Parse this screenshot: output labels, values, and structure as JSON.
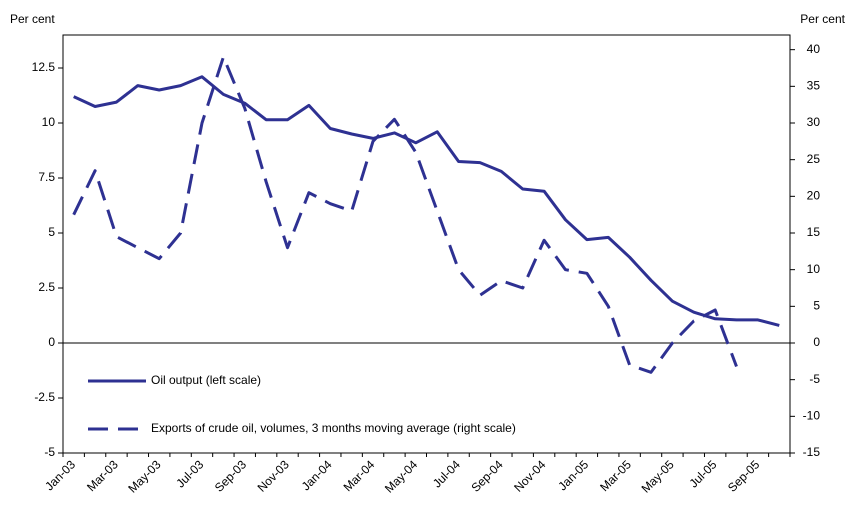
{
  "chart_data": {
    "type": "line",
    "y_label": "Per cent",
    "y2_label": "Per cent",
    "categories": [
      "Jan-03",
      null,
      "Mar-03",
      null,
      "May-03",
      null,
      "Jul-03",
      null,
      "Sep-03",
      null,
      "Nov-03",
      null,
      "Jan-04",
      null,
      "Mar-04",
      null,
      "May-04",
      null,
      "Jul-04",
      null,
      "Sep-04",
      null,
      "Nov-04",
      null,
      "Jan-05",
      null,
      "Mar-05",
      null,
      "May-05",
      null,
      "Jul-05",
      null,
      "Sep-05",
      null
    ],
    "series": [
      {
        "name": "Oil output (left scale)",
        "color": "#2e3192",
        "dash": false,
        "axis": "y",
        "values": [
          11.2,
          10.75,
          10.95,
          11.7,
          11.5,
          11.7,
          12.1,
          11.3,
          10.9,
          10.15,
          10.15,
          10.8,
          9.75,
          9.5,
          9.3,
          9.55,
          9.1,
          9.6,
          8.25,
          8.2,
          7.8,
          7.0,
          6.9,
          5.6,
          4.7,
          4.8,
          3.9,
          2.85,
          1.9,
          1.4,
          1.1,
          1.05,
          1.05,
          0.8
        ]
      },
      {
        "name": "Exports of crude oil, volumes, 3 months moving average (right scale)",
        "color": "#2e3192",
        "dash": true,
        "axis": "y2",
        "values": [
          17.5,
          23.5,
          14.5,
          13,
          11.5,
          15,
          30,
          39,
          32,
          22,
          13,
          20.5,
          19,
          18,
          27.5,
          30.5,
          26,
          18,
          10,
          6.5,
          8.5,
          7.5,
          14,
          10,
          9.5,
          5,
          -3,
          -4,
          0,
          3,
          4.5,
          -3.2,
          null,
          null
        ]
      }
    ],
    "ylim": [
      -5,
      14
    ],
    "yticks": [
      -5,
      -2.5,
      0,
      2.5,
      5,
      7.5,
      10,
      12.5
    ],
    "y2lim": [
      -15,
      42
    ],
    "y2ticks": [
      -15,
      -10,
      -5,
      0,
      5,
      10,
      15,
      20,
      25,
      30,
      35,
      40
    ],
    "legend": "lower left",
    "grid": false
  }
}
